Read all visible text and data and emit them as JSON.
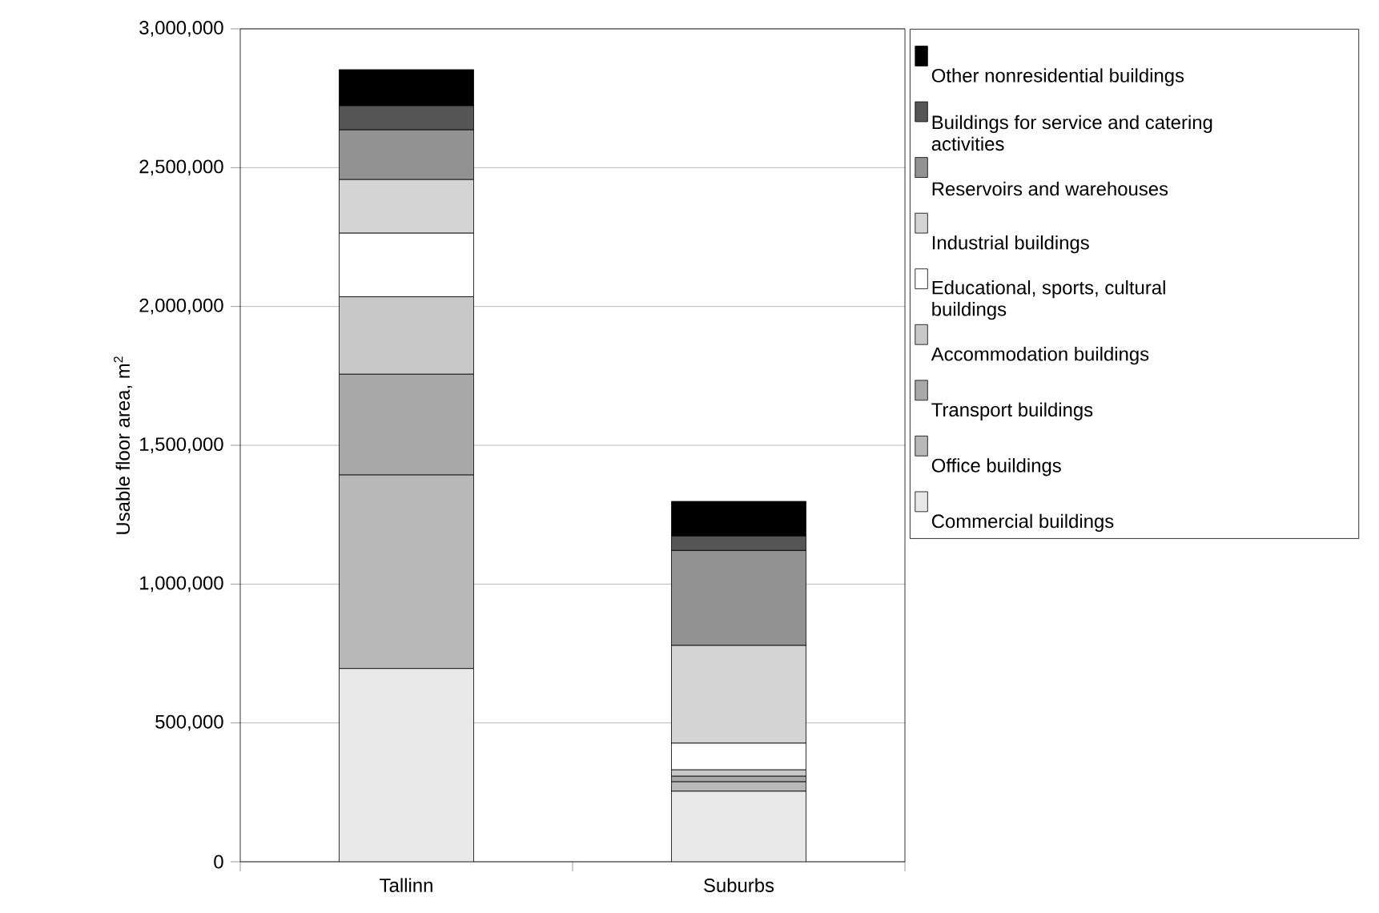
{
  "chart_data": {
    "type": "bar",
    "stacked": true,
    "categories": [
      "Tallinn",
      "Suburbs"
    ],
    "ylabel": "Usable floor area, m$^{2}$",
    "ylim": [
      0,
      3000000
    ],
    "yticks": [
      {
        "value": 0,
        "label": "0"
      },
      {
        "value": 500000,
        "label": "500,000"
      },
      {
        "value": 1000000,
        "label": "1,000,000"
      },
      {
        "value": 1500000,
        "label": "1,500,000"
      },
      {
        "value": 2000000,
        "label": "2,000,000"
      },
      {
        "value": 2500000,
        "label": "2,500,000"
      },
      {
        "value": 3000000,
        "label": "3,000,000"
      }
    ],
    "grid": "y",
    "legend": "right",
    "series": [
      {
        "name": "Commercial buildings",
        "color": "#e8e8e8",
        "values": [
          696000,
          254000
        ]
      },
      {
        "name": "Office buildings",
        "color": "#b8b8b8",
        "values": [
          697000,
          34000
        ]
      },
      {
        "name": "Transport buildings",
        "color": "#a8a8a8",
        "values": [
          363000,
          20000
        ]
      },
      {
        "name": "Accommodation buildings",
        "color": "#c8c8c8",
        "values": [
          279000,
          23000
        ]
      },
      {
        "name": "Educational, sports, cultural buildings",
        "color": "#ffffff",
        "values": [
          229000,
          96000
        ]
      },
      {
        "name": "Industrial buildings",
        "color": "#d4d4d4",
        "values": [
          193000,
          352000
        ]
      },
      {
        "name": "Reservoirs and warehouses",
        "color": "#929292",
        "values": [
          179000,
          342000
        ]
      },
      {
        "name": "Buildings for service and catering activities",
        "color": "#555555",
        "values": [
          87000,
          52000
        ]
      },
      {
        "name": "Other nonresidential buildings",
        "color": "#000000",
        "values": [
          130000,
          125000
        ]
      }
    ]
  }
}
